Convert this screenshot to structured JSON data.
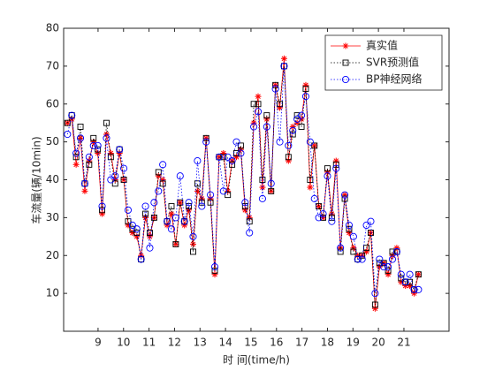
{
  "chart_data": {
    "type": "line",
    "xlabel": "时 间(time/h)",
    "ylabel": "车流量(辆/10min)",
    "x": [
      7.8,
      7.97,
      8.14,
      8.31,
      8.48,
      8.65,
      8.82,
      8.99,
      9.16,
      9.33,
      9.5,
      9.67,
      9.84,
      10.01,
      10.18,
      10.35,
      10.52,
      10.69,
      10.86,
      11.03,
      11.2,
      11.37,
      11.54,
      11.71,
      11.88,
      12.05,
      12.22,
      12.39,
      12.56,
      12.73,
      12.9,
      13.07,
      13.24,
      13.41,
      13.58,
      13.75,
      13.92,
      14.09,
      14.26,
      14.43,
      14.6,
      14.77,
      14.94,
      15.11,
      15.28,
      15.45,
      15.62,
      15.79,
      15.96,
      16.13,
      16.3,
      16.47,
      16.64,
      16.81,
      16.98,
      17.15,
      17.32,
      17.49,
      17.66,
      17.83,
      18.0,
      18.17,
      18.34,
      18.51,
      18.68,
      18.85,
      19.02,
      19.19,
      19.36,
      19.53,
      19.7,
      19.87,
      20.04,
      20.21,
      20.38,
      20.55,
      20.72,
      20.89,
      21.06,
      21.23,
      21.4,
      21.57
    ],
    "series": [
      {
        "name": "真实值",
        "color": "#ff0000",
        "marker": "asterisk",
        "linestyle": "solid",
        "values": [
          55,
          56,
          44,
          51,
          37,
          45,
          50,
          47,
          31,
          52,
          47,
          40,
          47,
          40,
          28,
          26,
          25,
          20,
          30,
          25,
          30,
          41,
          40,
          28,
          31,
          23,
          34,
          28,
          32,
          23,
          37,
          35,
          51,
          35,
          15,
          46,
          47,
          37,
          45,
          46,
          48,
          32,
          30,
          55,
          62,
          38,
          56,
          37,
          65,
          59,
          72,
          45,
          54,
          55,
          56,
          65,
          38,
          49,
          33,
          30,
          42,
          31,
          45,
          22,
          36,
          26,
          22,
          20,
          20,
          21,
          26,
          6,
          17,
          18,
          15,
          20,
          22,
          13,
          12,
          12,
          10,
          15
        ]
      },
      {
        "name": "SVR预测值",
        "color": "#000000",
        "marker": "square",
        "linestyle": "dotted",
        "values": [
          55,
          57,
          46,
          54,
          39,
          44,
          51,
          48,
          32,
          55,
          46,
          39,
          48,
          40,
          29,
          27,
          26,
          19,
          31,
          26,
          30,
          42,
          39,
          29,
          33,
          23,
          34,
          29,
          33,
          21,
          39,
          34,
          51,
          34,
          16,
          46,
          46,
          36,
          44,
          47,
          49,
          33,
          29,
          60,
          60,
          40,
          57,
          37,
          65,
          60,
          70,
          46,
          52,
          57,
          54,
          64,
          40,
          49,
          33,
          30,
          43,
          30,
          44,
          21,
          35,
          27,
          21,
          19,
          20,
          22,
          26,
          7,
          18,
          18,
          16,
          21,
          21,
          14,
          13,
          13,
          11,
          15
        ]
      },
      {
        "name": "BP神经网络",
        "color": "#0000ff",
        "marker": "circle",
        "linestyle": "dotted",
        "values": [
          52,
          57,
          47,
          51,
          39,
          46,
          49,
          49,
          33,
          51,
          40,
          41,
          48,
          43,
          32,
          28,
          27,
          19,
          33,
          22,
          34,
          37,
          44,
          29,
          27,
          30,
          41,
          29,
          34,
          25,
          45,
          33,
          50,
          36,
          17,
          46,
          37,
          46,
          45,
          50,
          47,
          34,
          26,
          54,
          58,
          35,
          54,
          39,
          64,
          50,
          70,
          49,
          53,
          56,
          57,
          62,
          50,
          35,
          30,
          31,
          41,
          29,
          43,
          22,
          36,
          28,
          25,
          19,
          19,
          28,
          29,
          10,
          19,
          17,
          17,
          19,
          21,
          15,
          13,
          15,
          11,
          11
        ]
      }
    ],
    "xlim": [
      7.65,
      22.77
    ],
    "xticks": [
      9,
      10,
      11,
      12,
      13,
      14,
      15,
      16,
      17,
      18,
      19,
      20,
      21
    ],
    "ylim": [
      0,
      80
    ],
    "yticks": [
      10,
      20,
      30,
      40,
      50,
      60,
      70,
      80
    ],
    "grid": false,
    "legend": "northeast"
  }
}
